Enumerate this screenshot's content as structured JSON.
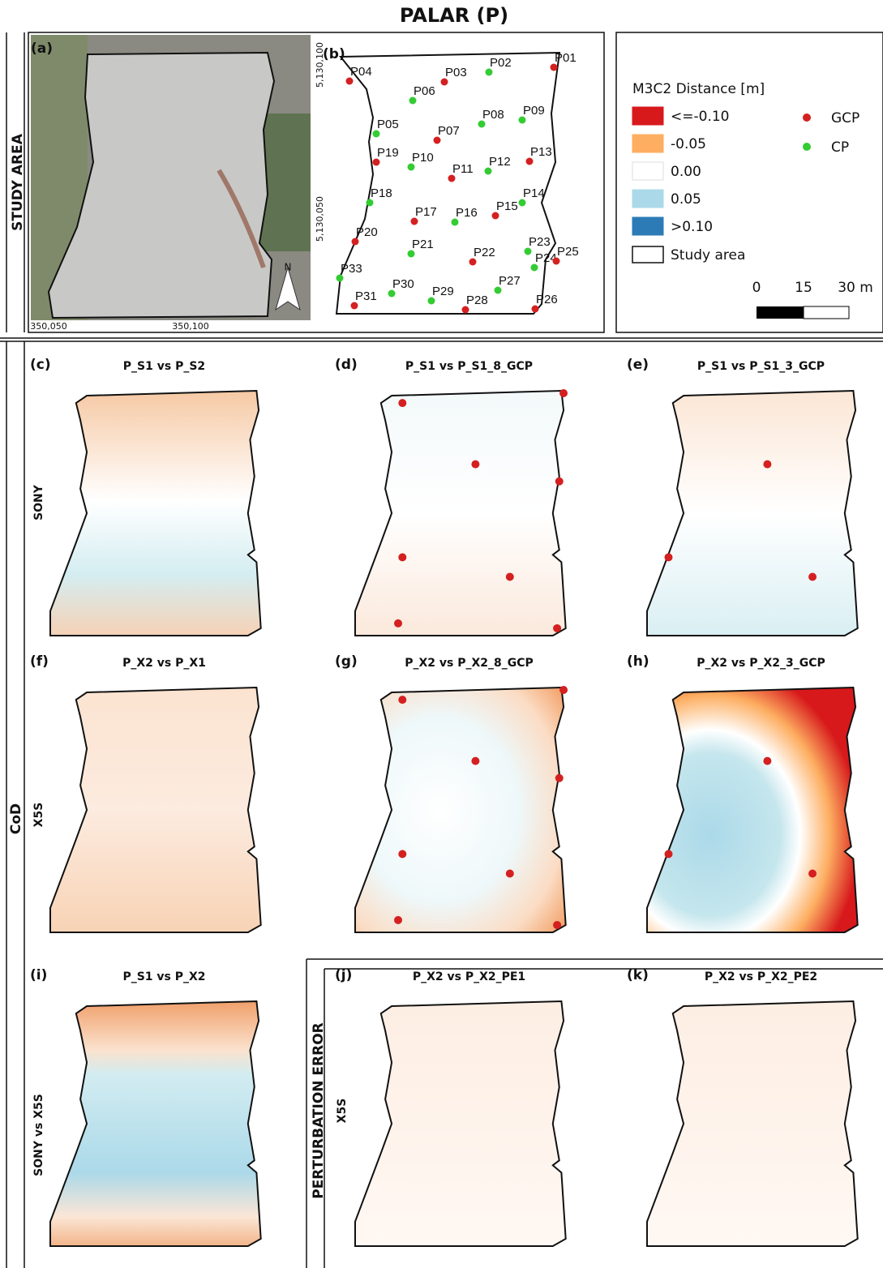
{
  "title": "PALAR (P)",
  "study_area": {
    "side_label": "STUDY AREA",
    "panel_a": {
      "label": "(a)",
      "north": "N",
      "x_labels": [
        "350,050",
        "350,100"
      ]
    },
    "panel_b": {
      "label": "(b)",
      "y_labels": [
        "5,130,100",
        "5,130,050"
      ],
      "points": [
        {
          "label": "P01",
          "gcp": true
        },
        {
          "label": "P02",
          "gcp": false
        },
        {
          "label": "P03",
          "gcp": true
        },
        {
          "label": "P04",
          "gcp": true
        },
        {
          "label": "P05",
          "gcp": false
        },
        {
          "label": "P06",
          "gcp": false
        },
        {
          "label": "P07",
          "gcp": true
        },
        {
          "label": "P08",
          "gcp": false
        },
        {
          "label": "P09",
          "gcp": false
        },
        {
          "label": "P10",
          "gcp": false
        },
        {
          "label": "P11",
          "gcp": true
        },
        {
          "label": "P12",
          "gcp": false
        },
        {
          "label": "P13",
          "gcp": true
        },
        {
          "label": "P14",
          "gcp": false
        },
        {
          "label": "P15",
          "gcp": true
        },
        {
          "label": "P16",
          "gcp": false
        },
        {
          "label": "P17",
          "gcp": true
        },
        {
          "label": "P18",
          "gcp": false
        },
        {
          "label": "P19",
          "gcp": true
        },
        {
          "label": "P20",
          "gcp": true
        },
        {
          "label": "P21",
          "gcp": false
        },
        {
          "label": "P22",
          "gcp": true
        },
        {
          "label": "P23",
          "gcp": false
        },
        {
          "label": "P24",
          "gcp": false
        },
        {
          "label": "P25",
          "gcp": true
        },
        {
          "label": "P26",
          "gcp": true
        },
        {
          "label": "P27",
          "gcp": false
        },
        {
          "label": "P28",
          "gcp": true
        },
        {
          "label": "P29",
          "gcp": false
        },
        {
          "label": "P30",
          "gcp": false
        },
        {
          "label": "P31",
          "gcp": true
        },
        {
          "label": "P33",
          "gcp": false
        }
      ]
    }
  },
  "legend": {
    "title": "M3C2 Distance [m]",
    "classes": [
      {
        "label": "<=-0.10",
        "color": "#d7191c"
      },
      {
        "label": "-0.05",
        "color": "#fdae61"
      },
      {
        "label": "0.00",
        "color": "#ffffff"
      },
      {
        "label": "0.05",
        "color": "#abd9e9"
      },
      {
        "label": ">0.10",
        "color": "#2c7bb6"
      }
    ],
    "study_area": "Study area",
    "gcp": {
      "label": "GCP",
      "color": "#d42020"
    },
    "cp": {
      "label": "CP",
      "color": "#33cc33"
    },
    "scale": [
      "0",
      "15",
      "30 m"
    ]
  },
  "sections": {
    "cod": "CoD",
    "perturbation": "PERTURBATION ERROR"
  },
  "rows": [
    {
      "label": "SONY"
    },
    {
      "label": "X5S"
    },
    {
      "label": "SONY vs X5S"
    },
    {
      "label": "X5S"
    }
  ],
  "panels": [
    {
      "label": "(c)",
      "title": "P_S1 vs P_S2"
    },
    {
      "label": "(d)",
      "title": "P_S1 vs P_S1_8_GCP"
    },
    {
      "label": "(e)",
      "title": "P_S1 vs P_S1_3_GCP"
    },
    {
      "label": "(f)",
      "title": "P_X2 vs P_X1"
    },
    {
      "label": "(g)",
      "title": "P_X2 vs P_X2_8_GCP"
    },
    {
      "label": "(h)",
      "title": "P_X2 vs P_X2_3_GCP"
    },
    {
      "label": "(i)",
      "title": "P_S1 vs P_X2"
    },
    {
      "label": "(j)",
      "title": "P_X2 vs P_X2_PE1"
    },
    {
      "label": "(k)",
      "title": "P_X2 vs P_X2_PE2"
    }
  ]
}
